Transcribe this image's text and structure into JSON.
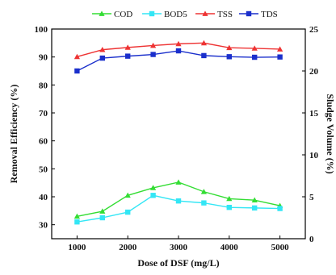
{
  "chart_data": {
    "type": "line",
    "title": "",
    "xlabel": "Dose of DSF (mg/L)",
    "ylabel": "Removal Efficiency (%)",
    "y2label": "Sludge Volume (%)",
    "x": [
      1000,
      1500,
      2000,
      2500,
      3000,
      3500,
      4000,
      4500,
      5000
    ],
    "xticks": [
      1000,
      2000,
      3000,
      4000,
      5000
    ],
    "xlim": [
      500,
      5500
    ],
    "ylim": [
      25,
      100
    ],
    "yticks": [
      30,
      40,
      50,
      60,
      70,
      80,
      90,
      100
    ],
    "y2lim": [
      0,
      25
    ],
    "y2ticks": [
      0,
      5,
      10,
      15,
      20,
      25
    ],
    "grid": false,
    "legend_position": "top",
    "series": [
      {
        "name": "COD",
        "color": "#33dd33",
        "marker": "triangle",
        "values": [
          33,
          34.8,
          40.5,
          43.2,
          45.2,
          41.8,
          39.3,
          38.8,
          36.8
        ]
      },
      {
        "name": "BOD5",
        "color": "#33e6f5",
        "marker": "square",
        "values": [
          31,
          32.5,
          34.5,
          40.5,
          38.5,
          37.8,
          36.2,
          36,
          35.8
        ]
      },
      {
        "name": "TSS",
        "color": "#ee3333",
        "marker": "triangle",
        "values": [
          90.1,
          92.6,
          93.4,
          94.1,
          94.7,
          95,
          93.3,
          93.1,
          92.8
        ]
      },
      {
        "name": "TDS",
        "color": "#1a2fcc",
        "marker": "square",
        "values": [
          85,
          89.6,
          90.3,
          90.9,
          92.2,
          90.5,
          90.1,
          89.9,
          90
        ]
      }
    ]
  }
}
